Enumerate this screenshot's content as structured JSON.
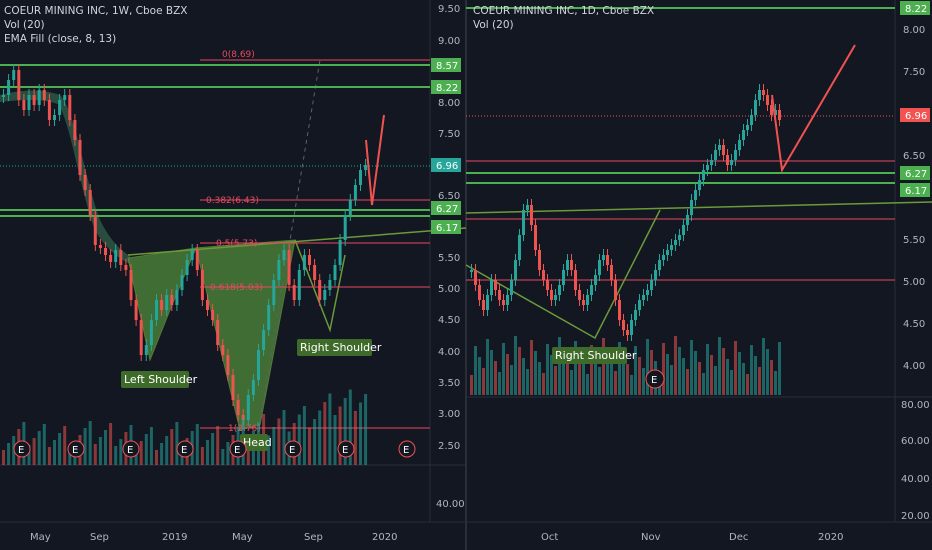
{
  "charts": {
    "left": {
      "title": "COEUR MINING INC, 1W, Cboe BZX",
      "indicators": [
        "Vol (20)",
        "EMA Fill (close, 8, 13)"
      ]
    },
    "right": {
      "title": "COEUR MINING INC, 1D, Cboe BZX",
      "indicators": [
        "Vol (20)"
      ]
    }
  },
  "colors": {
    "background": "#131722",
    "up": "#26a69a",
    "down": "#ef5350",
    "green_level": "#4caf50",
    "red_level": "#e84a5f",
    "label_bg": "#3f6b2a",
    "price_tag": "#f05350"
  },
  "annotations": {
    "left_shoulder": "Left Shoulder",
    "head": "Head",
    "right_shoulder_1": "Right Shoulder",
    "right_shoulder_2": "Right Shoulder",
    "earnings_marker": "E"
  },
  "chart_data": [
    {
      "type": "candlestick",
      "title": "COEUR MINING INC, 1W, Cboe BZX",
      "price_axis_ticks": [
        "9.50",
        "9.00",
        "8.50",
        "8.00",
        "7.50",
        "7.00",
        "6.50",
        "6.00",
        "5.50",
        "5.00",
        "4.50",
        "4.00",
        "3.50",
        "3.00",
        "2.50"
      ],
      "volume_axis_ticks": [
        "40.00"
      ],
      "x_ticks": [
        "May",
        "Sep",
        "2019",
        "May",
        "Sep",
        "2020"
      ],
      "level_tags": [
        {
          "value": "8.57",
          "kind": "green"
        },
        {
          "value": "8.22",
          "kind": "green"
        },
        {
          "value": "6.96",
          "kind": "current"
        },
        {
          "value": "6.27",
          "kind": "green"
        },
        {
          "value": "6.17",
          "kind": "green"
        }
      ],
      "fibonacci": [
        {
          "label": "0(8.69)",
          "level": 0,
          "price": 8.69
        },
        {
          "label": "0.382(6.43)",
          "level": 0.382,
          "price": 6.43
        },
        {
          "label": "0.5(5.73)",
          "level": 0.5,
          "price": 5.73
        },
        {
          "label": "0.618(5.03)",
          "level": 0.618,
          "price": 5.03
        },
        {
          "label": "1(2.76)",
          "level": 1,
          "price": 2.76
        }
      ],
      "earnings_markers": 8
    },
    {
      "type": "candlestick",
      "title": "COEUR MINING INC, 1D, Cboe BZX",
      "price_axis_ticks": [
        "8.00",
        "7.50",
        "6.50",
        "5.50",
        "5.00",
        "4.50",
        "4.00"
      ],
      "volume_axis_ticks": [
        "80.00",
        "60.00",
        "40.00",
        "20.00"
      ],
      "x_ticks": [
        "Oct",
        "Nov",
        "Dec",
        "2020"
      ],
      "level_tags": [
        {
          "value": "8.22",
          "kind": "green"
        },
        {
          "value": "6.96",
          "kind": "current"
        },
        {
          "value": "6.27",
          "kind": "green"
        },
        {
          "value": "6.17",
          "kind": "green"
        }
      ],
      "earnings_markers": 1
    }
  ]
}
